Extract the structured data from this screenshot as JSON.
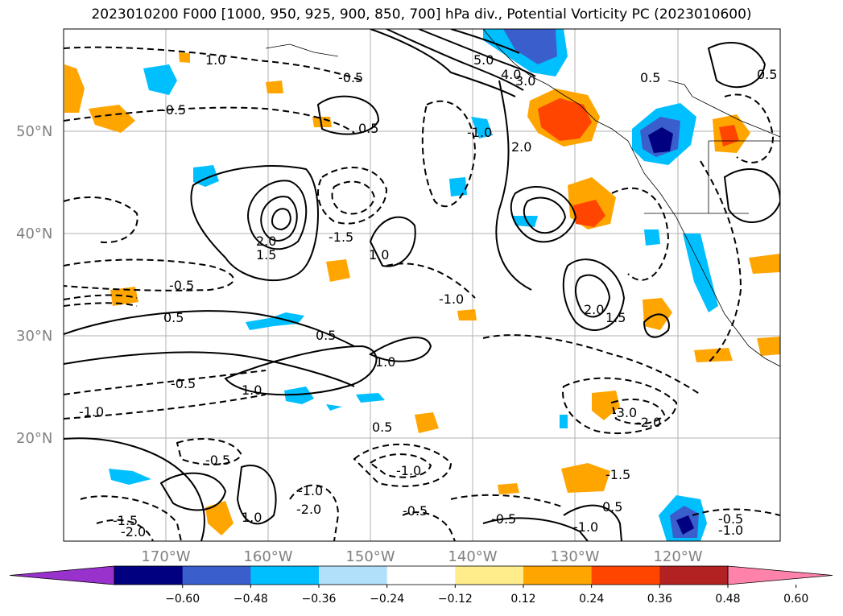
{
  "title": "2023010200 F000 [1000, 950, 925, 900, 850, 700] hPa div., Potential Vorticity PC (2023010600)",
  "lat_labels": [
    "50°N",
    "40°N",
    "30°N",
    "20°N"
  ],
  "lon_labels": [
    "170°W",
    "160°W",
    "150°W",
    "140°W",
    "130°W",
    "120°W"
  ],
  "colorbar": {
    "ticks": [
      "−0.60",
      "−0.48",
      "−0.36",
      "−0.24",
      "−0.12",
      "0.12",
      "0.24",
      "0.36",
      "0.48",
      "0.60"
    ],
    "colors": [
      "#9932cc",
      "#000080",
      "#3a5fcd",
      "#00bfff",
      "#b0e0fa",
      "#ffffff",
      "#ffec8b",
      "#ffa500",
      "#ff4500",
      "#b22222",
      "#ff82ab"
    ]
  },
  "contour_labels": [
    "5.0",
    "4.0",
    "3.0",
    "2.0",
    "1.5",
    "1.0",
    "0.5",
    "-0.5",
    "-1.0",
    "-1.5",
    "-2.0",
    "-3.0"
  ]
}
